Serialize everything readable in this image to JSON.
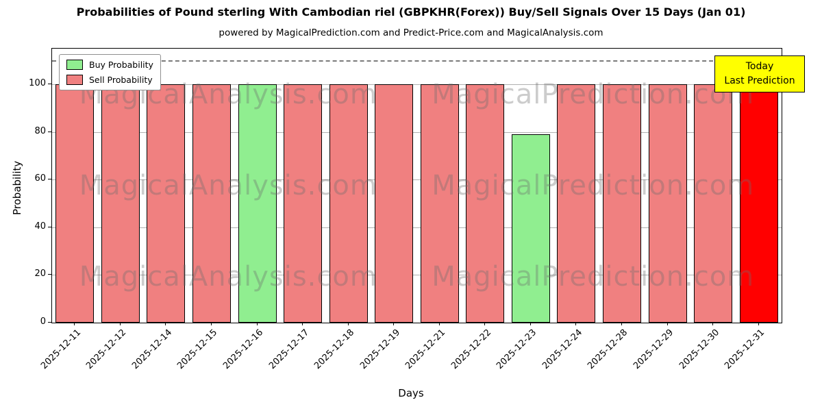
{
  "title": "Probabilities of Pound sterling With Cambodian riel (GBPKHR(Forex)) Buy/Sell Signals Over 15 Days (Jan 01)",
  "subtitle": "powered by MagicalPrediction.com and Predict-Price.com and MagicalAnalysis.com",
  "annotation": {
    "line1": "Today",
    "line2": "Last Prediction"
  },
  "legend": [
    {
      "label": "Buy Probability",
      "color": "#90ee90"
    },
    {
      "label": "Sell Probability",
      "color": "#f08080"
    }
  ],
  "watermark": {
    "left": "MagicalAnalysis.com",
    "right": "MagicalPrediction.com"
  },
  "colors": {
    "buy": "#90ee90",
    "sell": "#f08080",
    "today": "#ff0000",
    "grid": "#b0b0b0",
    "dashed": "#7a7a7a",
    "annotation_bg": "#ffff00"
  },
  "chart_data": {
    "type": "bar",
    "title": "Probabilities of Pound sterling With Cambodian riel (GBPKHR(Forex)) Buy/Sell Signals Over 15 Days (Jan 01)",
    "xlabel": "Days",
    "ylabel": "Probability",
    "ylim": [
      0,
      115
    ],
    "yticks": [
      0,
      20,
      40,
      60,
      80,
      100
    ],
    "dashed_line_y": 110,
    "grid": true,
    "legend_position": "upper left",
    "categories": [
      "2025-12-11",
      "2025-12-12",
      "2025-12-14",
      "2025-12-15",
      "2025-12-16",
      "2025-12-17",
      "2025-12-18",
      "2025-12-19",
      "2025-12-21",
      "2025-12-22",
      "2025-12-23",
      "2025-12-24",
      "2025-12-28",
      "2025-12-29",
      "2025-12-30",
      "2025-12-31"
    ],
    "bars": [
      {
        "category": "2025-12-11",
        "value": 100,
        "type": "sell"
      },
      {
        "category": "2025-12-12",
        "value": 100,
        "type": "sell"
      },
      {
        "category": "2025-12-14",
        "value": 100,
        "type": "sell"
      },
      {
        "category": "2025-12-15",
        "value": 100,
        "type": "sell"
      },
      {
        "category": "2025-12-16",
        "value": 100,
        "type": "buy"
      },
      {
        "category": "2025-12-17",
        "value": 100,
        "type": "sell"
      },
      {
        "category": "2025-12-18",
        "value": 100,
        "type": "sell"
      },
      {
        "category": "2025-12-19",
        "value": 100,
        "type": "sell"
      },
      {
        "category": "2025-12-21",
        "value": 100,
        "type": "sell"
      },
      {
        "category": "2025-12-22",
        "value": 100,
        "type": "sell"
      },
      {
        "category": "2025-12-23",
        "value": 79,
        "type": "buy"
      },
      {
        "category": "2025-12-24",
        "value": 100,
        "type": "sell"
      },
      {
        "category": "2025-12-28",
        "value": 100,
        "type": "sell"
      },
      {
        "category": "2025-12-29",
        "value": 100,
        "type": "sell"
      },
      {
        "category": "2025-12-30",
        "value": 100,
        "type": "sell"
      },
      {
        "category": "2025-12-31",
        "value": 100,
        "type": "today"
      }
    ],
    "series": [
      {
        "name": "Buy Probability",
        "color": "#90ee90",
        "values": [
          0,
          0,
          0,
          0,
          100,
          0,
          0,
          0,
          0,
          0,
          79,
          0,
          0,
          0,
          0,
          0
        ]
      },
      {
        "name": "Sell Probability",
        "color": "#f08080",
        "values": [
          100,
          100,
          100,
          100,
          0,
          100,
          100,
          100,
          100,
          100,
          0,
          100,
          100,
          100,
          100,
          0
        ]
      },
      {
        "name": "Today (Last Prediction)",
        "color": "#ff0000",
        "values": [
          0,
          0,
          0,
          0,
          0,
          0,
          0,
          0,
          0,
          0,
          0,
          0,
          0,
          0,
          0,
          100
        ]
      }
    ]
  }
}
